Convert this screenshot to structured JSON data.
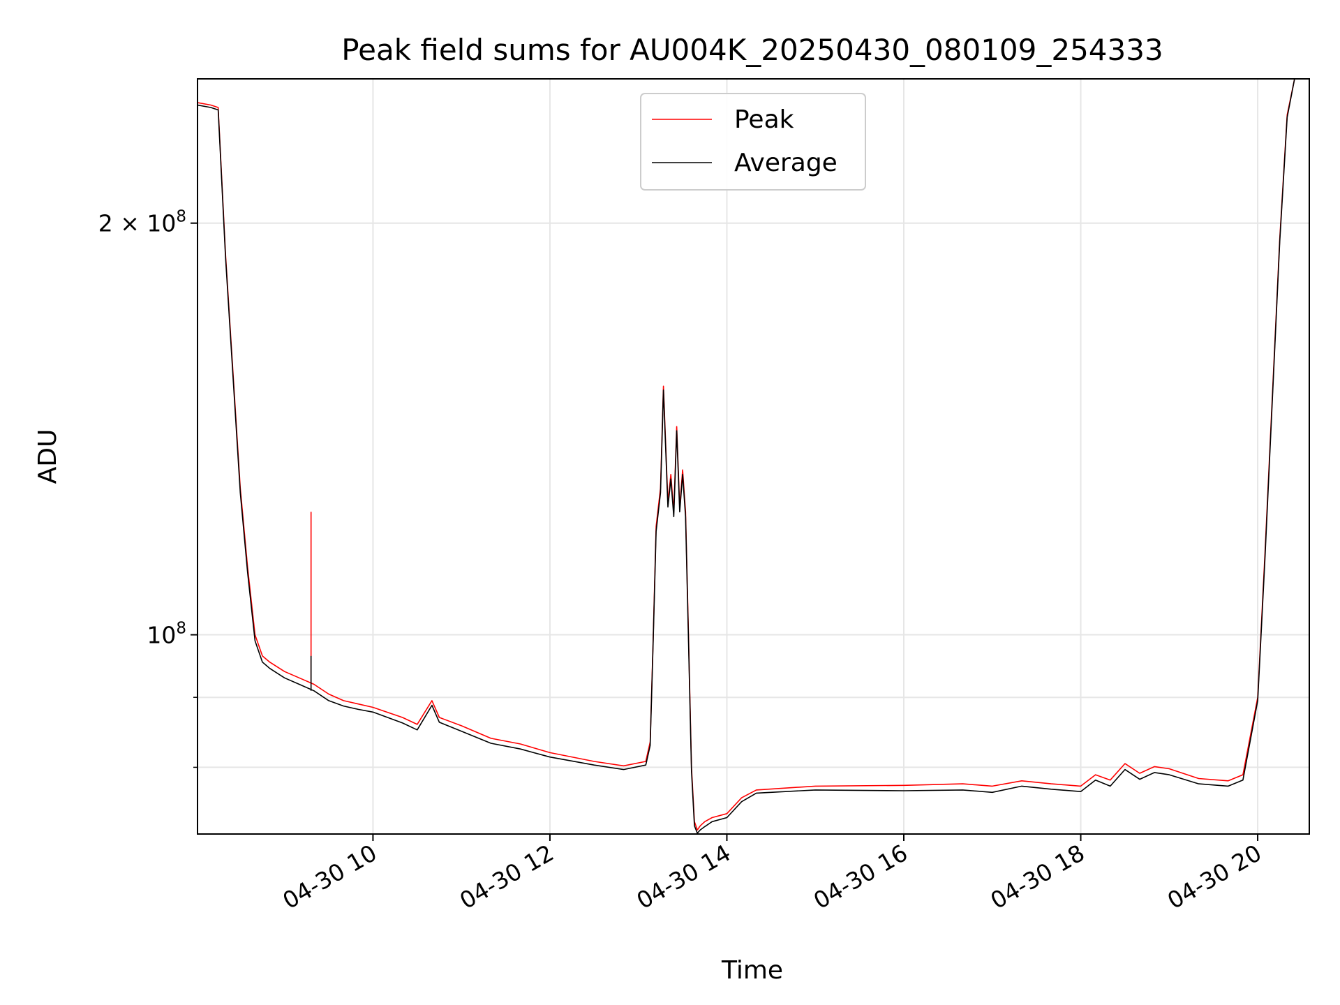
{
  "chart_data": {
    "type": "line",
    "title": "Peak field sums for AU004K_20250430_080109_254333",
    "xlabel": "Time",
    "ylabel": "ADU",
    "y_scale": "log",
    "xlim": [
      "2025-04-30 08:01",
      "2025-04-30 20:35"
    ],
    "ylim": [
      71500000,
      255000000
    ],
    "x_ticks": [
      "2025-04-30 10:00",
      "2025-04-30 12:00",
      "2025-04-30 14:00",
      "2025-04-30 16:00",
      "2025-04-30 18:00",
      "2025-04-30 20:00"
    ],
    "x_tick_labels": [
      "04-30 10",
      "04-30 12",
      "04-30 14",
      "04-30 16",
      "04-30 18",
      "04-30 20"
    ],
    "y_major_ticks": [
      {
        "value": 100000000,
        "base": "10",
        "exp": "8"
      },
      {
        "value": 200000000,
        "base": "2 × 10",
        "exp": "8"
      }
    ],
    "y_minor_ticks": [
      90000000,
      80000000
    ],
    "grid": true,
    "legend": "top-center",
    "colors": {
      "peak": "#ff0000",
      "average": "#000000",
      "grid": "#e6e6e6"
    },
    "series": [
      {
        "name": "Peak",
        "color": "#ff0000",
        "x": [
          "2025-04-30 08:01",
          "2025-04-30 08:10",
          "2025-04-30 08:15",
          "2025-04-30 08:20",
          "2025-04-30 08:30",
          "2025-04-30 08:35",
          "2025-04-30 08:40",
          "2025-04-30 08:45",
          "2025-04-30 08:50",
          "2025-04-30 09:00",
          "2025-04-30 09:10",
          "2025-04-30 09:20",
          "2025-04-30 09:30",
          "2025-04-30 09:40",
          "2025-04-30 09:50",
          "2025-04-30 10:00",
          "2025-04-30 10:20",
          "2025-04-30 10:30",
          "2025-04-30 10:40",
          "2025-04-30 10:45",
          "2025-04-30 11:00",
          "2025-04-30 11:20",
          "2025-04-30 11:40",
          "2025-04-30 12:00",
          "2025-04-30 12:30",
          "2025-04-30 12:50",
          "2025-04-30 13:05",
          "2025-04-30 13:08",
          "2025-04-30 13:10",
          "2025-04-30 13:12",
          "2025-04-30 13:15",
          "2025-04-30 13:17",
          "2025-04-30 13:20",
          "2025-04-30 13:22",
          "2025-04-30 13:24",
          "2025-04-30 13:26",
          "2025-04-30 13:28",
          "2025-04-30 13:30",
          "2025-04-30 13:32",
          "2025-04-30 13:34",
          "2025-04-30 13:36",
          "2025-04-30 13:38",
          "2025-04-30 13:40",
          "2025-04-30 13:42",
          "2025-04-30 13:45",
          "2025-04-30 13:50",
          "2025-04-30 14:00",
          "2025-04-30 14:10",
          "2025-04-30 14:20",
          "2025-04-30 15:00",
          "2025-04-30 16:00",
          "2025-04-30 16:40",
          "2025-04-30 17:00",
          "2025-04-30 17:20",
          "2025-04-30 17:40",
          "2025-04-30 18:00",
          "2025-04-30 18:10",
          "2025-04-30 18:20",
          "2025-04-30 18:30",
          "2025-04-30 18:40",
          "2025-04-30 18:50",
          "2025-04-30 19:00",
          "2025-04-30 19:20",
          "2025-04-30 19:40",
          "2025-04-30 19:50",
          "2025-04-30 20:00",
          "2025-04-30 20:05",
          "2025-04-30 20:10",
          "2025-04-30 20:15",
          "2025-04-30 20:20",
          "2025-04-30 20:25"
        ],
        "y": [
          245000000,
          244000000,
          243000000,
          190000000,
          128000000,
          112000000,
          100000000,
          96500000,
          95500000,
          94000000,
          93000000,
          92000000,
          90500000,
          89500000,
          89000000,
          88500000,
          87000000,
          86000000,
          89500000,
          87000000,
          85800000,
          84000000,
          83200000,
          82000000,
          80800000,
          80200000,
          80800000,
          83500000,
          99000000,
          120000000,
          128000000,
          152000000,
          125000000,
          131000000,
          123000000,
          142000000,
          124000000,
          132000000,
          123000000,
          100000000,
          80000000,
          73000000,
          72000000,
          72500000,
          73000000,
          73500000,
          74000000,
          76000000,
          77000000,
          77500000,
          77600000,
          77800000,
          77500000,
          78200000,
          77800000,
          77500000,
          79000000,
          78300000,
          80500000,
          79200000,
          80100000,
          79800000,
          78500000,
          78200000,
          79000000,
          90000000,
          115000000,
          150000000,
          195000000,
          240000000,
          255000000
        ]
      },
      {
        "name": "Average",
        "color": "#000000",
        "x": [
          "2025-04-30 08:01",
          "2025-04-30 08:10",
          "2025-04-30 08:15",
          "2025-04-30 08:20",
          "2025-04-30 08:30",
          "2025-04-30 08:35",
          "2025-04-30 08:40",
          "2025-04-30 08:45",
          "2025-04-30 08:50",
          "2025-04-30 09:00",
          "2025-04-30 09:10",
          "2025-04-30 09:20",
          "2025-04-30 09:30",
          "2025-04-30 09:40",
          "2025-04-30 09:50",
          "2025-04-30 10:00",
          "2025-04-30 10:20",
          "2025-04-30 10:30",
          "2025-04-30 10:40",
          "2025-04-30 10:45",
          "2025-04-30 11:00",
          "2025-04-30 11:20",
          "2025-04-30 11:40",
          "2025-04-30 12:00",
          "2025-04-30 12:30",
          "2025-04-30 12:50",
          "2025-04-30 13:05",
          "2025-04-30 13:08",
          "2025-04-30 13:10",
          "2025-04-30 13:12",
          "2025-04-30 13:15",
          "2025-04-30 13:17",
          "2025-04-30 13:20",
          "2025-04-30 13:22",
          "2025-04-30 13:24",
          "2025-04-30 13:26",
          "2025-04-30 13:28",
          "2025-04-30 13:30",
          "2025-04-30 13:32",
          "2025-04-30 13:34",
          "2025-04-30 13:36",
          "2025-04-30 13:38",
          "2025-04-30 13:40",
          "2025-04-30 13:42",
          "2025-04-30 13:45",
          "2025-04-30 13:50",
          "2025-04-30 14:00",
          "2025-04-30 14:10",
          "2025-04-30 14:20",
          "2025-04-30 15:00",
          "2025-04-30 16:00",
          "2025-04-30 16:40",
          "2025-04-30 17:00",
          "2025-04-30 17:20",
          "2025-04-30 17:40",
          "2025-04-30 18:00",
          "2025-04-30 18:10",
          "2025-04-30 18:20",
          "2025-04-30 18:30",
          "2025-04-30 18:40",
          "2025-04-30 18:50",
          "2025-04-30 19:00",
          "2025-04-30 19:20",
          "2025-04-30 19:40",
          "2025-04-30 19:50",
          "2025-04-30 20:00",
          "2025-04-30 20:05",
          "2025-04-30 20:10",
          "2025-04-30 20:15",
          "2025-04-30 20:20",
          "2025-04-30 20:25"
        ],
        "y": [
          244000000,
          243000000,
          242000000,
          189000000,
          127000000,
          111000000,
          99000000,
          95500000,
          94500000,
          93000000,
          92000000,
          91000000,
          89500000,
          88700000,
          88200000,
          87800000,
          86200000,
          85200000,
          88800000,
          86300000,
          85000000,
          83300000,
          82500000,
          81400000,
          80300000,
          79700000,
          80300000,
          83000000,
          98500000,
          119000000,
          127000000,
          151000000,
          124000000,
          130000000,
          122000000,
          141000000,
          123000000,
          131000000,
          122000000,
          99000000,
          79500000,
          72500000,
          71600000,
          72000000,
          72400000,
          73000000,
          73500000,
          75500000,
          76600000,
          77000000,
          76900000,
          77000000,
          76700000,
          77500000,
          77100000,
          76800000,
          78300000,
          77500000,
          79700000,
          78400000,
          79300000,
          79000000,
          77800000,
          77500000,
          78300000,
          89500000,
          114000000,
          149000000,
          194000000,
          239000000,
          255000000
        ]
      }
    ],
    "annotations": [
      {
        "series": "Peak",
        "type": "spike",
        "x": "2025-04-30 09:18",
        "y": 123000000,
        "from": 92000000
      },
      {
        "series": "Average",
        "type": "spike",
        "x": "2025-04-30 09:18",
        "y": 96500000,
        "from": 91000000
      }
    ]
  }
}
